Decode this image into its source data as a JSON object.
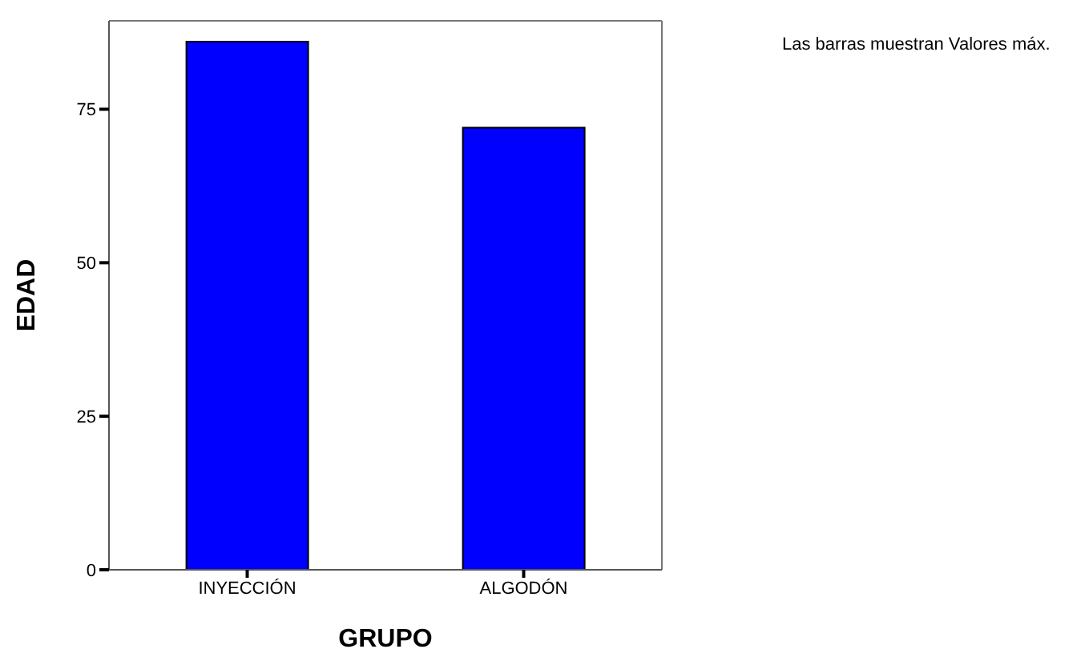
{
  "chart_data": {
    "type": "bar",
    "xlabel": "GRUPO",
    "ylabel": "EDAD",
    "categories": [
      "INYECCIÓN",
      "ALGODÓN"
    ],
    "values": [
      86,
      72
    ],
    "color": "#0000ff",
    "ylim": [
      0,
      89.4
    ],
    "yticks": [
      0,
      25,
      50,
      75
    ],
    "annotations": [
      "Las barras muestran Valores máx."
    ]
  }
}
